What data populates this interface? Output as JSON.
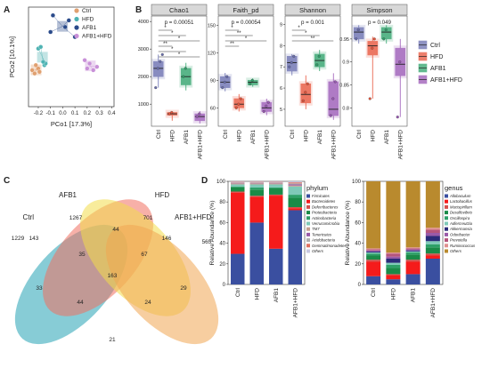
{
  "panels": {
    "A": {
      "letter": "A",
      "xlabel": "PCo1 [17.3%]",
      "ylabel": "PCo2 [10.1%]",
      "xticks": [
        "-0.2",
        "-0.1",
        "0.0",
        "0.1",
        "0.2",
        "0.3",
        "0.4"
      ],
      "legend": [
        "Ctrl",
        "HFD",
        "AFB1",
        "AFB1+HFD"
      ]
    },
    "B": {
      "letter": "B",
      "groups": [
        "Ctrl",
        "HFD",
        "AFB1",
        "AFB1+HFD"
      ],
      "colors": [
        "#6a6fb0",
        "#e8553b",
        "#2fa36b",
        "#9b59b6"
      ],
      "legend": [
        "Ctrl",
        "HFD",
        "AFB1",
        "AFB1+HFD"
      ]
    },
    "C": {
      "letter": "C",
      "sets": [
        "Ctrl",
        "AFB1",
        "HFD",
        "AFB1+HFD"
      ],
      "values": [
        {
          "label": "1267"
        },
        {
          "label": "701"
        },
        {
          "label": "1229"
        },
        {
          "label": "565"
        },
        {
          "label": "143"
        },
        {
          "label": "44"
        },
        {
          "label": "146"
        },
        {
          "label": "35"
        },
        {
          "label": "67"
        },
        {
          "label": "163"
        },
        {
          "label": "33"
        },
        {
          "label": "29"
        },
        {
          "label": "44"
        },
        {
          "label": "24"
        },
        {
          "label": "21"
        }
      ]
    },
    "D": {
      "letter": "D",
      "ylabel": "Relative Abundance (%)",
      "groups": [
        "Ctrl",
        "HFD",
        "AFB1",
        "AFB1+HFD"
      ],
      "phylum_title": "phylum",
      "genus_title": "genus"
    }
  },
  "chart_data": [
    {
      "type": "scatter",
      "title": "",
      "xlabel": "PCo1 [17.3%]",
      "ylabel": "PCo2 [10.1%]",
      "xlim": [
        -0.28,
        0.42
      ],
      "ylim": [
        -0.3,
        0.3
      ],
      "series": [
        {
          "name": "Ctrl",
          "color": "#e0a070",
          "points": [
            [
              -0.25,
              -0.08
            ],
            [
              -0.23,
              -0.1
            ],
            [
              -0.2,
              -0.07
            ],
            [
              -0.22,
              -0.05
            ],
            [
              -0.19,
              -0.09
            ]
          ]
        },
        {
          "name": "HFD",
          "color": "#4fb3b3",
          "points": [
            [
              -0.2,
              0.05
            ],
            [
              -0.18,
              0.06
            ],
            [
              -0.15,
              -0.05
            ],
            [
              -0.14,
              -0.04
            ],
            [
              -0.16,
              -0.03
            ]
          ]
        },
        {
          "name": "AFB1",
          "color": "#2a4a8a",
          "points": [
            [
              -0.08,
              0.25
            ],
            [
              0.05,
              0.22
            ],
            [
              -0.1,
              0.15
            ],
            [
              0.02,
              0.18
            ],
            [
              0.1,
              0.12
            ]
          ]
        },
        {
          "name": "AFB1+HFD",
          "color": "#c890d8",
          "points": [
            [
              0.2,
              -0.07
            ],
            [
              0.22,
              -0.04
            ],
            [
              0.25,
              -0.08
            ],
            [
              0.18,
              -0.02
            ],
            [
              0.28,
              -0.06
            ]
          ]
        }
      ]
    },
    {
      "type": "box",
      "panels": [
        {
          "title": "Chao1",
          "yticks": [
            1000,
            2000,
            3000,
            4000
          ],
          "ylim": [
            200,
            4200
          ],
          "pvalue": "p = 0.00051",
          "boxes": [
            {
              "q1": 2000,
              "med": 2300,
              "q3": 2550,
              "lo": 1600,
              "hi": 2800,
              "pts": [
                1600,
                2300,
                2550,
                2800
              ]
            },
            {
              "q1": 600,
              "med": 650,
              "q3": 700,
              "lo": 400,
              "hi": 720,
              "pts": [
                650,
                700
              ]
            },
            {
              "q1": 1700,
              "med": 2000,
              "q3": 2300,
              "lo": 1500,
              "hi": 2500,
              "pts": [
                2000,
                2300
              ]
            },
            {
              "q1": 400,
              "med": 550,
              "q3": 650,
              "lo": 300,
              "hi": 750,
              "pts": [
                550,
                650
              ]
            }
          ],
          "sig": [
            "*",
            "*",
            "*",
            "**",
            "*",
            "*"
          ]
        },
        {
          "title": "Faith_pd",
          "yticks": [
            60,
            90,
            120,
            150
          ],
          "ylim": [
            40,
            160
          ],
          "pvalue": "p = 0.00054",
          "boxes": [
            {
              "q1": 82,
              "med": 88,
              "q3": 94,
              "lo": 78,
              "hi": 98,
              "pts": [
                82,
                88,
                94
              ]
            },
            {
              "q1": 60,
              "med": 64,
              "q3": 70,
              "lo": 56,
              "hi": 75,
              "pts": [
                60,
                64,
                70
              ]
            },
            {
              "q1": 85,
              "med": 88,
              "q3": 90,
              "lo": 83,
              "hi": 92,
              "pts": [
                86,
                90
              ]
            },
            {
              "q1": 56,
              "med": 60,
              "q3": 66,
              "lo": 52,
              "hi": 70,
              "pts": [
                56,
                62,
                66
              ]
            }
          ],
          "sig": [
            "*",
            "**",
            "*",
            "**"
          ]
        },
        {
          "title": "Shannon",
          "yticks": [
            5,
            6,
            7,
            8,
            9
          ],
          "ylim": [
            4.2,
            9.4
          ],
          "pvalue": "p = 0.001",
          "boxes": [
            {
              "q1": 6.8,
              "med": 7.2,
              "q3": 7.5,
              "lo": 6.6,
              "hi": 7.6,
              "pts": [
                7.0,
                7.2,
                7.5
              ]
            },
            {
              "q1": 5.3,
              "med": 5.7,
              "q3": 6.2,
              "lo": 5.0,
              "hi": 6.6,
              "pts": [
                5.4,
                5.8,
                6.2
              ]
            },
            {
              "q1": 7.0,
              "med": 7.3,
              "q3": 7.6,
              "lo": 6.8,
              "hi": 7.8,
              "pts": [
                7.1,
                7.5
              ]
            },
            {
              "q1": 4.7,
              "med": 5.0,
              "q3": 6.3,
              "lo": 4.5,
              "hi": 6.7,
              "pts": [
                4.7,
                5.5,
                6.3
              ]
            }
          ],
          "sig": [
            "*",
            "*",
            "**"
          ]
        },
        {
          "title": "Simpson",
          "yticks": [
            0.8,
            0.85,
            0.9,
            0.95
          ],
          "ylim": [
            0.76,
            1.0
          ],
          "pvalue": "p = 0.049",
          "boxes": [
            {
              "q1": 0.95,
              "med": 0.965,
              "q3": 0.975,
              "lo": 0.94,
              "hi": 0.98,
              "pts": [
                0.95,
                0.97
              ]
            },
            {
              "q1": 0.915,
              "med": 0.935,
              "q3": 0.945,
              "lo": 0.82,
              "hi": 0.955,
              "pts": [
                0.82,
                0.93,
                0.95
              ]
            },
            {
              "q1": 0.95,
              "med": 0.965,
              "q3": 0.975,
              "lo": 0.94,
              "hi": 0.98,
              "pts": [
                0.95,
                0.97
              ]
            },
            {
              "q1": 0.87,
              "med": 0.895,
              "q3": 0.93,
              "lo": 0.78,
              "hi": 0.95,
              "pts": [
                0.78,
                0.9
              ]
            }
          ],
          "sig": []
        }
      ]
    },
    {
      "type": "bar",
      "stacked": true,
      "title": "phylum",
      "categories": [
        "Ctrl",
        "HFD",
        "AFB1",
        "AFB1+HFD"
      ],
      "ylim": [
        0,
        100
      ],
      "yticks": [
        0,
        20,
        40,
        60,
        80,
        100
      ],
      "series": [
        {
          "name": "Firmicutes",
          "color": "#3a4fa0",
          "values": [
            30,
            60,
            35,
            72
          ]
        },
        {
          "name": "Bacteroidetes",
          "color": "#f51b1b",
          "values": [
            60,
            25,
            52,
            2
          ]
        },
        {
          "name": "Deferribacteres",
          "color": "#d6504d",
          "values": [
            1,
            1,
            1,
            1
          ]
        },
        {
          "name": "Proteobacteria",
          "color": "#1a8a47",
          "values": [
            4,
            6,
            6,
            9
          ]
        },
        {
          "name": "Actinobacteria",
          "color": "#2ea068",
          "values": [
            1,
            2,
            1,
            3
          ]
        },
        {
          "name": "Verrucomicrobia",
          "color": "#7fc9b8",
          "values": [
            2,
            3,
            3,
            8
          ]
        },
        {
          "name": "TM7",
          "color": "#c6a090",
          "values": [
            1,
            1,
            1,
            1
          ]
        },
        {
          "name": "Tenericutes",
          "color": "#9a5aa8",
          "values": [
            0.5,
            0.5,
            0.5,
            1
          ]
        },
        {
          "name": "Acidobacteria",
          "color": "#b0b0b0",
          "values": [
            0.5,
            0.5,
            0.5,
            1
          ]
        },
        {
          "name": "Gemmatimonadetes",
          "color": "#e07060",
          "values": [
            0.5,
            0.5,
            0.5,
            1
          ]
        },
        {
          "name": "Others",
          "color": "#c8c8e0",
          "values": [
            0.5,
            0.5,
            0.5,
            1
          ]
        }
      ]
    },
    {
      "type": "bar",
      "stacked": true,
      "title": "genus",
      "categories": [
        "Ctrl",
        "HFD",
        "AFB1",
        "AFB1+HFD"
      ],
      "ylim": [
        0,
        100
      ],
      "yticks": [
        0,
        20,
        40,
        60,
        80,
        100
      ],
      "series": [
        {
          "name": "Allobaculum",
          "color": "#3a4fa0",
          "values": [
            8,
            5,
            10,
            25
          ]
        },
        {
          "name": "Lactobacillus",
          "color": "#f51b1b",
          "values": [
            14,
            4,
            12,
            3
          ]
        },
        {
          "name": "Mucispirillum",
          "color": "#d6504d",
          "values": [
            2,
            1,
            2,
            2
          ]
        },
        {
          "name": "Desulfovibrio",
          "color": "#1a8a47",
          "values": [
            4,
            6,
            5,
            6
          ]
        },
        {
          "name": "Oscillospira",
          "color": "#2ea068",
          "values": [
            2,
            3,
            2,
            3
          ]
        },
        {
          "name": "Adlercreutzia",
          "color": "#7fc9b8",
          "values": [
            1,
            2,
            1,
            3
          ]
        },
        {
          "name": "Akkermansia",
          "color": "#2b2b7a",
          "values": [
            1,
            4,
            1,
            5
          ]
        },
        {
          "name": "Odoribacter",
          "color": "#9a5aa8",
          "values": [
            1,
            2,
            1,
            3
          ]
        },
        {
          "name": "Prevotella",
          "color": "#b5547c",
          "values": [
            1,
            3,
            1,
            3
          ]
        },
        {
          "name": "Ruminococcus",
          "color": "#e09090",
          "values": [
            1,
            1,
            1,
            2
          ]
        },
        {
          "name": "Others",
          "color": "#b98a2e",
          "values": [
            65,
            69,
            64,
            45
          ]
        }
      ]
    }
  ]
}
